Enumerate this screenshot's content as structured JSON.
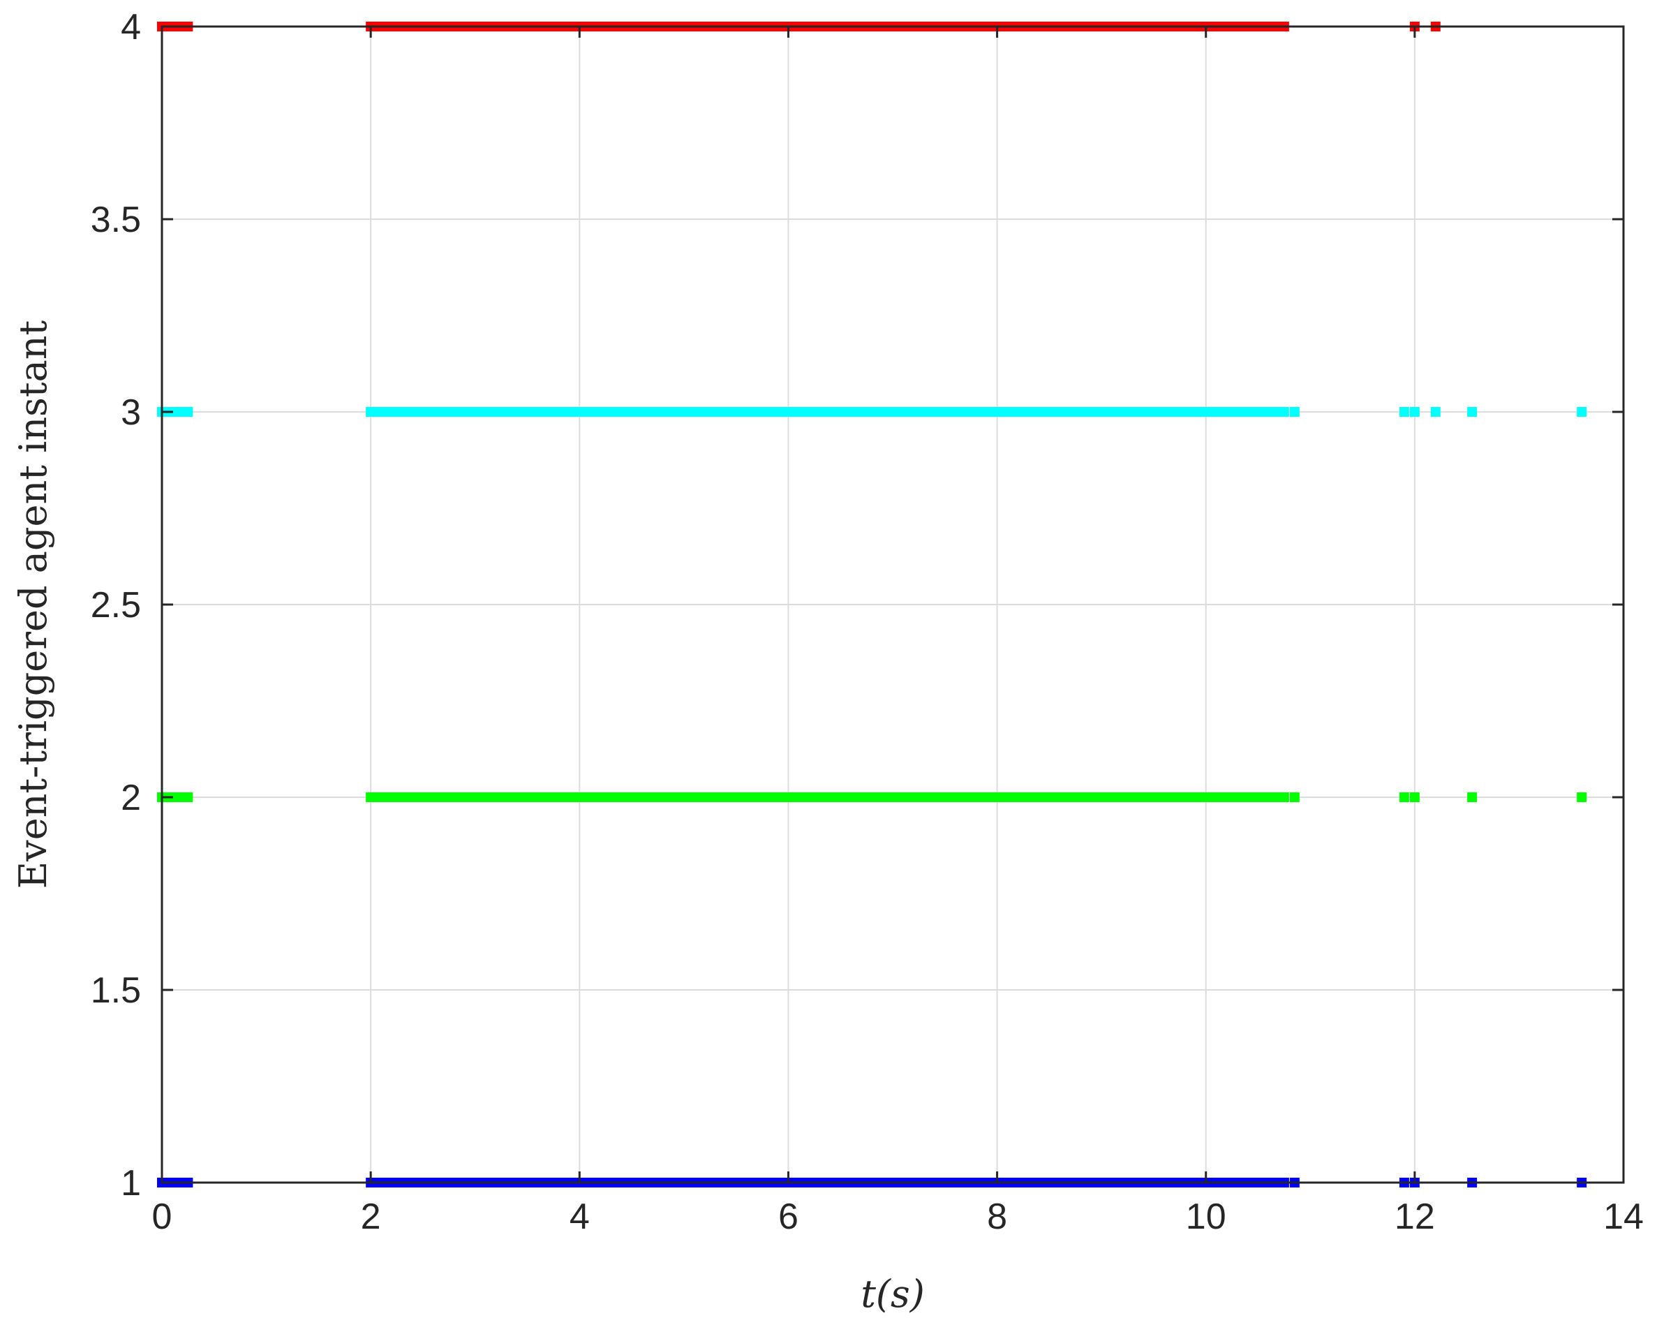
{
  "chart_data": {
    "type": "scatter",
    "xlabel": "t(s)",
    "ylabel": "Event-triggered agent instant",
    "xlim": [
      0,
      14
    ],
    "ylim": [
      1,
      4
    ],
    "xticks": [
      0,
      2,
      4,
      6,
      8,
      10,
      12,
      14
    ],
    "xtick_labels": [
      "0",
      "2",
      "4",
      "6",
      "8",
      "10",
      "12",
      "14"
    ],
    "yticks": [
      1,
      1.5,
      2,
      2.5,
      3,
      3.5,
      4
    ],
    "ytick_labels": [
      "1",
      "1.5",
      "2",
      "2.5",
      "3",
      "3.5",
      "4"
    ],
    "grid": true,
    "series": [
      {
        "agent": 1,
        "color": "#0000ff",
        "y": 1,
        "segments": [
          [
            0,
            0.25
          ],
          [
            2,
            10.75
          ]
        ],
        "points": [
          10.85,
          11.9,
          12.0,
          12.55,
          13.6
        ]
      },
      {
        "agent": 2,
        "color": "#00ff00",
        "y": 2,
        "segments": [
          [
            0,
            0.25
          ],
          [
            2,
            10.75
          ]
        ],
        "points": [
          10.85,
          11.9,
          12.0,
          12.55,
          13.6
        ]
      },
      {
        "agent": 3,
        "color": "#00ffff",
        "y": 3,
        "segments": [
          [
            0,
            0.25
          ],
          [
            2,
            10.75
          ]
        ],
        "points": [
          10.85,
          11.9,
          12.0,
          12.2,
          12.55,
          13.6
        ]
      },
      {
        "agent": 4,
        "color": "#ff0000",
        "y": 4,
        "segments": [
          [
            0,
            0.25
          ],
          [
            2,
            10.75
          ]
        ],
        "points": [
          12.0,
          12.2
        ]
      }
    ]
  }
}
